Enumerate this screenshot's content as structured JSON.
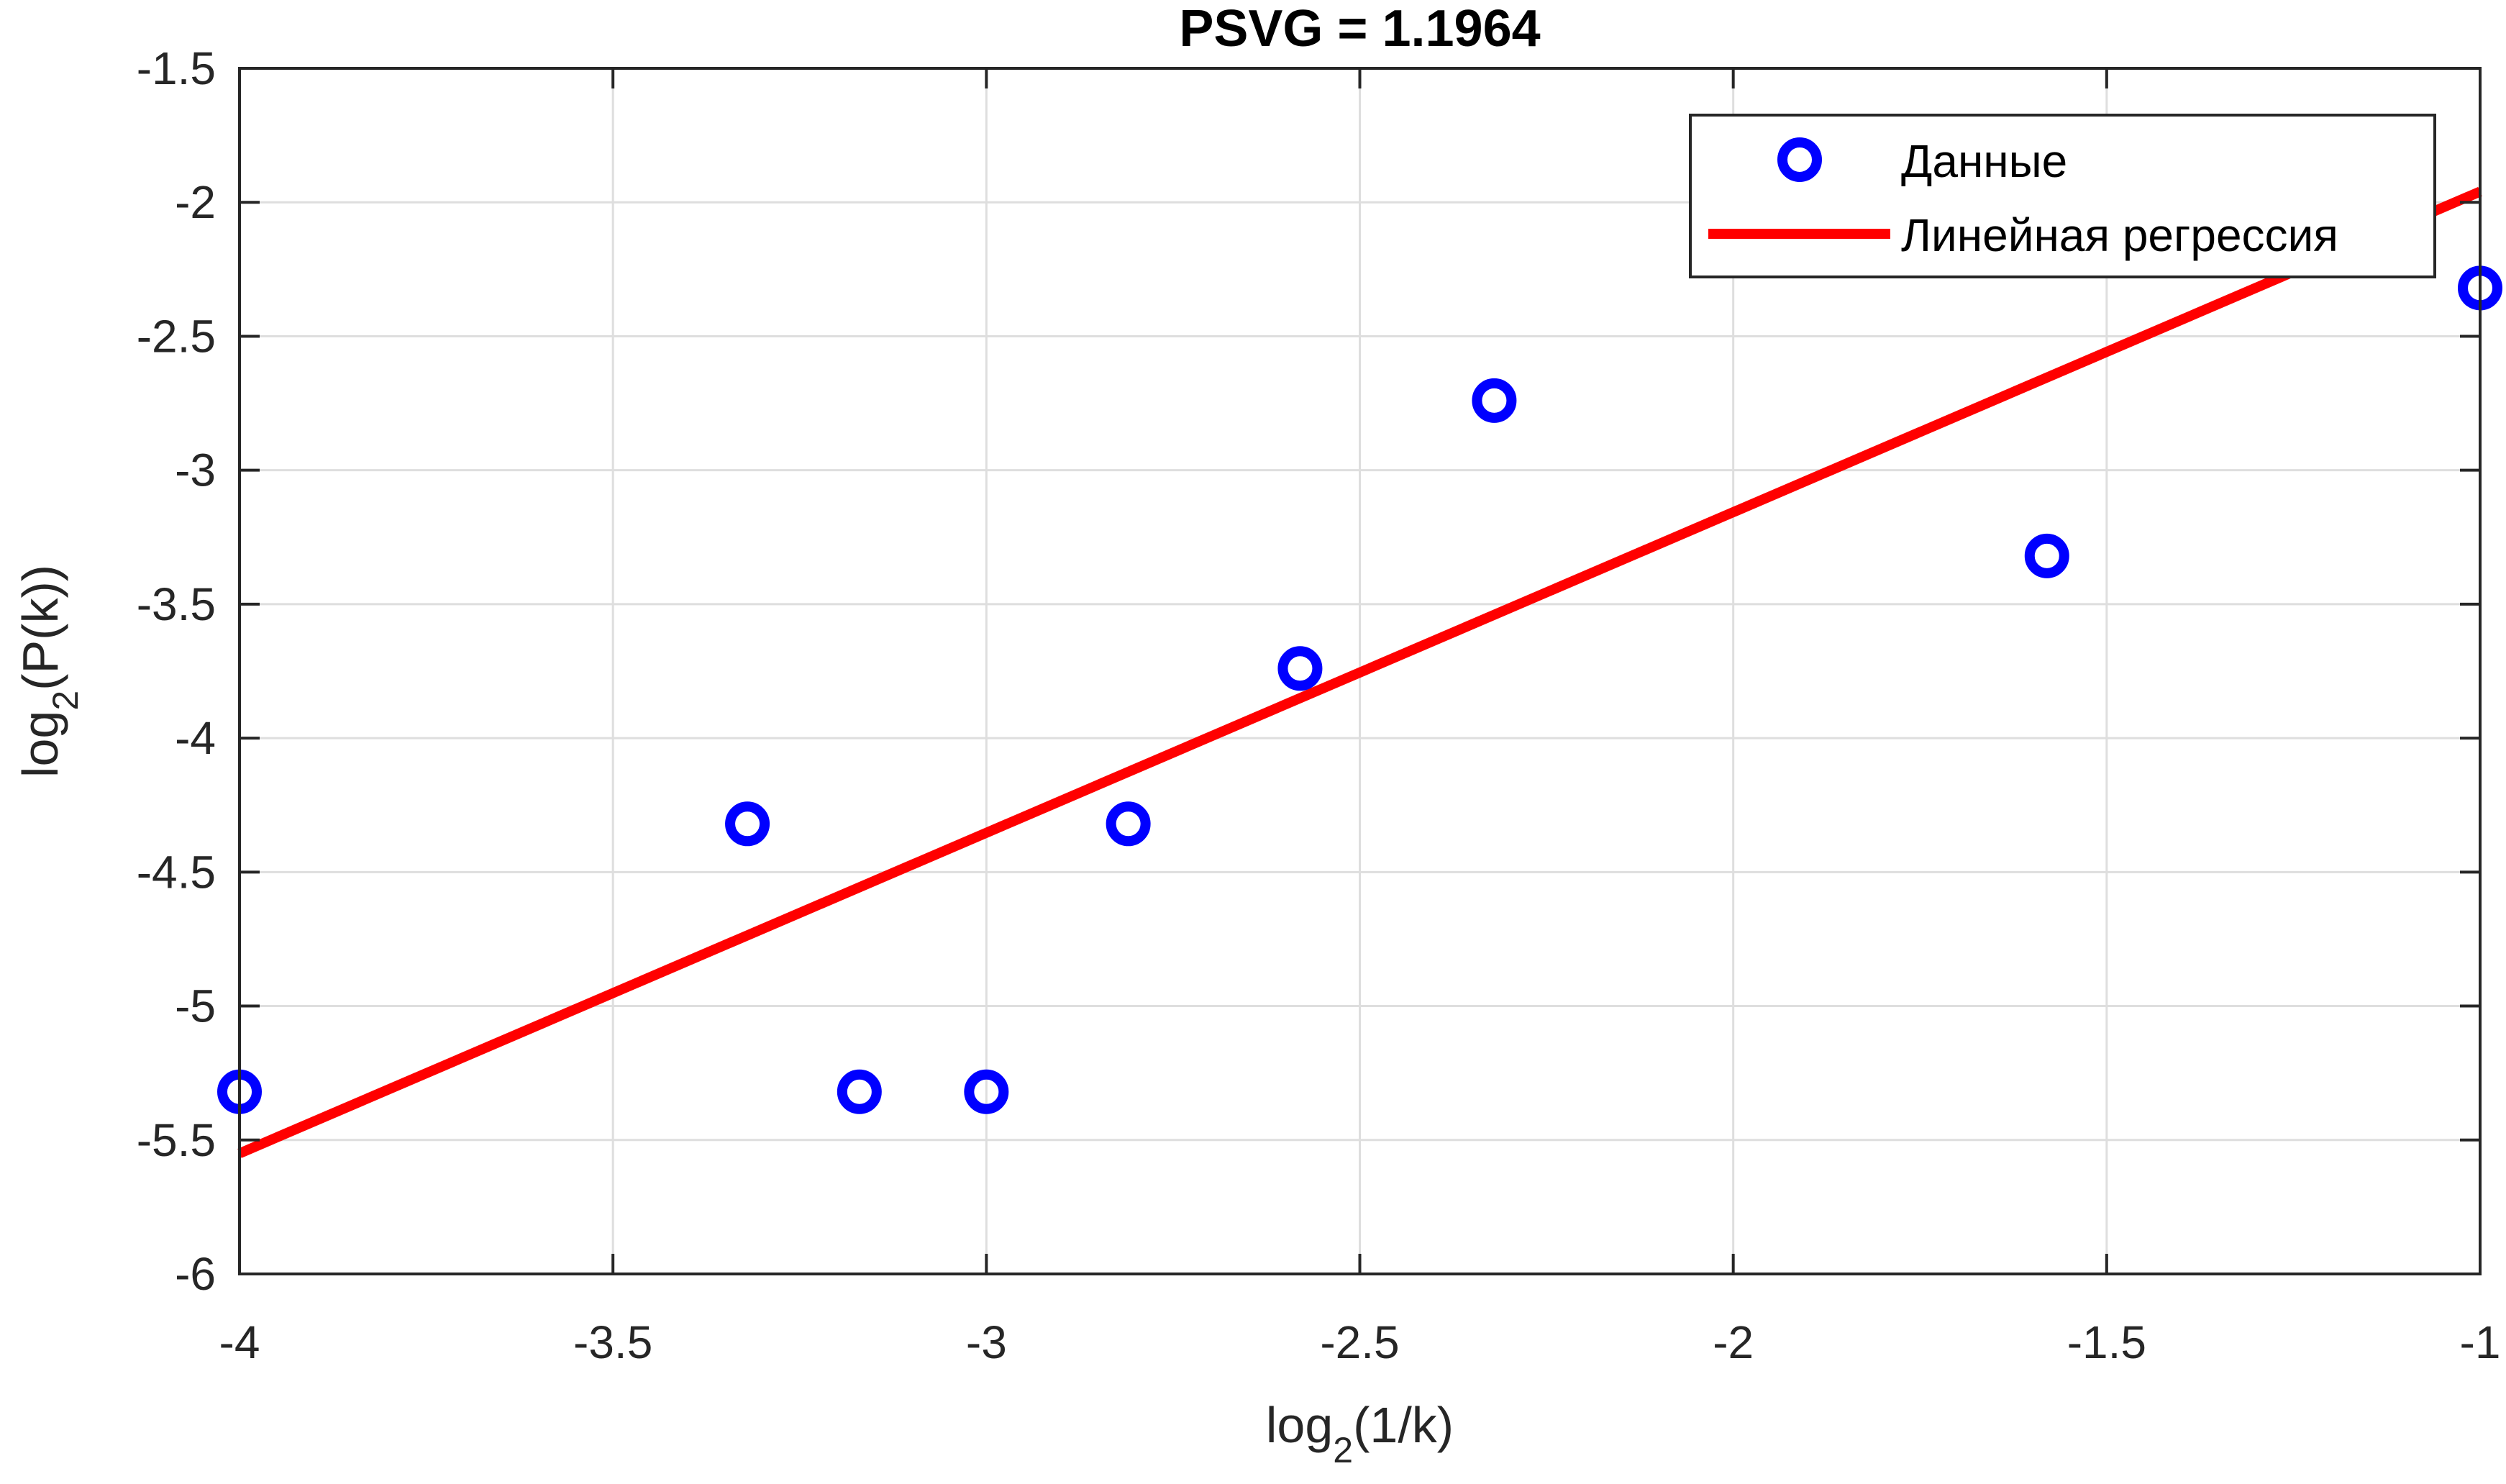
{
  "chart_data": {
    "type": "scatter",
    "title": "PSVG = 1.1964",
    "xlabel": {
      "base": "log",
      "sub": "2",
      "rest": "(1/k)"
    },
    "ylabel": {
      "base": "log",
      "sub": "2",
      "rest": "(P(k))"
    },
    "xlim": [
      -4,
      -1
    ],
    "ylim": [
      -6,
      -1.5
    ],
    "xticks": [
      -4,
      -3.5,
      -3,
      -2.5,
      -2,
      -1.5,
      -1
    ],
    "xtick_labels": [
      "-4",
      "-3.5",
      "-3",
      "-2.5",
      "-2",
      "-1.5",
      "-1"
    ],
    "yticks": [
      -6,
      -5.5,
      -5,
      -4.5,
      -4,
      -3.5,
      -3,
      -2.5,
      -2,
      -1.5
    ],
    "ytick_labels": [
      "-6",
      "-5.5",
      "-5",
      "-4.5",
      "-4",
      "-3.5",
      "-3",
      "-2.5",
      "-2",
      "-1.5"
    ],
    "grid": true,
    "legend_position": "top-right",
    "series": [
      {
        "name": "Данные",
        "kind": "scatter",
        "marker": "circle-open",
        "color": "#0000FF",
        "points": [
          {
            "x": -4.0,
            "y": -5.32
          },
          {
            "x": -3.32,
            "y": -4.32
          },
          {
            "x": -3.17,
            "y": -5.32
          },
          {
            "x": -3.0,
            "y": -5.32
          },
          {
            "x": -2.81,
            "y": -4.32
          },
          {
            "x": -2.58,
            "y": -3.74
          },
          {
            "x": -2.32,
            "y": -2.74
          },
          {
            "x": -1.58,
            "y": -3.32
          },
          {
            "x": -1.0,
            "y": -2.32
          }
        ]
      },
      {
        "name": "Линейная регрессия",
        "kind": "line",
        "color": "#FF0000",
        "points": [
          {
            "x": -4.0,
            "y": -5.55
          },
          {
            "x": -1.0,
            "y": -1.96
          }
        ]
      }
    ]
  }
}
